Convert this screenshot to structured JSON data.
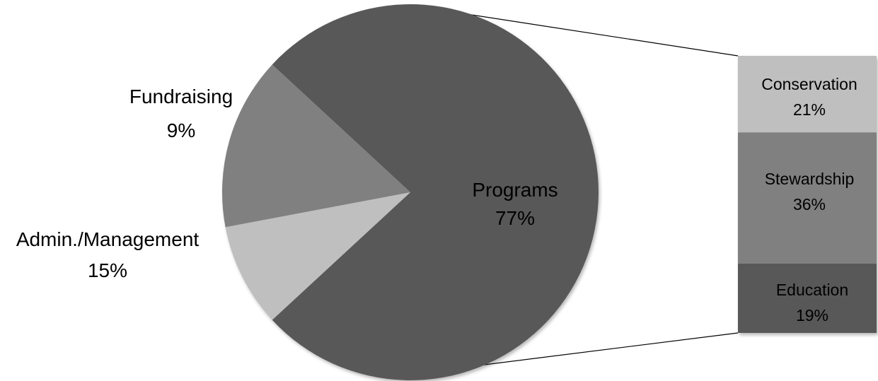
{
  "chart_data": {
    "type": "pie",
    "variant": "bar-of-pie",
    "slices": [
      {
        "label": "Programs",
        "value": 77,
        "value_label": "77%",
        "color": "#595959"
      },
      {
        "label": "Fundraising",
        "value": 9,
        "value_label": "9%",
        "color": "#bfbfbf"
      },
      {
        "label": "Admin./Management",
        "value": 15,
        "value_label": "15%",
        "color": "#808080"
      }
    ],
    "breakdown": {
      "of": "Programs",
      "segments": [
        {
          "label": "Conservation",
          "value": 21,
          "value_label": "21%",
          "color": "#bfbfbf"
        },
        {
          "label": "Stewardship",
          "value": 36,
          "value_label": "36%",
          "color": "#808080"
        },
        {
          "label": "Education",
          "value": 19,
          "value_label": "19%",
          "color": "#595959"
        }
      ]
    },
    "title": "",
    "legend": "none"
  }
}
